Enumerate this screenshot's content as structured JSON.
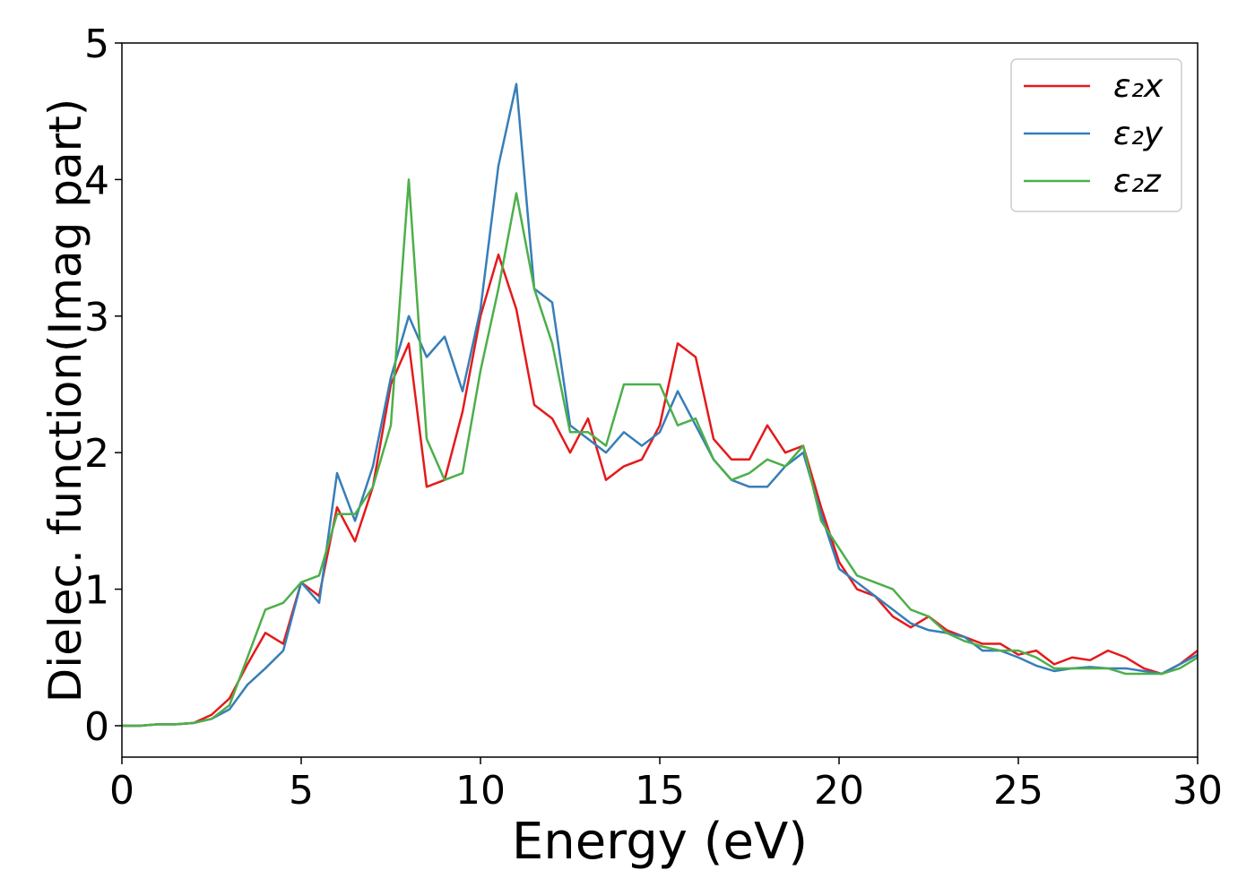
{
  "chart_data": {
    "type": "line",
    "xlabel": "Energy (eV)",
    "ylabel": "Dielec. function(Imag part)",
    "x": [
      0,
      0.5,
      1,
      1.5,
      2,
      2.5,
      3,
      3.5,
      4,
      4.5,
      5,
      5.5,
      6,
      6.5,
      7,
      7.5,
      8,
      8.5,
      9,
      9.5,
      10,
      10.5,
      11,
      11.5,
      12,
      12.5,
      13,
      13.5,
      14,
      14.5,
      15,
      15.5,
      16,
      16.5,
      17,
      17.5,
      18,
      18.5,
      19,
      19.5,
      20,
      20.5,
      21,
      21.5,
      22,
      22.5,
      23,
      23.5,
      24,
      24.5,
      25,
      25.5,
      26,
      26.5,
      27,
      27.5,
      28,
      28.5,
      29,
      29.5,
      30
    ],
    "series": [
      {
        "name": "ε₂x",
        "color": "#e41a1c",
        "values": [
          0,
          0,
          0.01,
          0.01,
          0.02,
          0.08,
          0.2,
          0.45,
          0.68,
          0.6,
          1.05,
          0.95,
          1.6,
          1.35,
          1.75,
          2.5,
          2.8,
          1.75,
          1.8,
          2.3,
          3.0,
          3.45,
          3.05,
          2.35,
          2.25,
          2.0,
          2.25,
          1.8,
          1.9,
          1.95,
          2.2,
          2.8,
          2.7,
          2.1,
          1.95,
          1.95,
          2.2,
          2.0,
          2.05,
          1.6,
          1.2,
          1.0,
          0.95,
          0.8,
          0.72,
          0.8,
          0.7,
          0.65,
          0.6,
          0.6,
          0.52,
          0.55,
          0.45,
          0.5,
          0.48,
          0.55,
          0.5,
          0.42,
          0.38,
          0.45,
          0.55
        ]
      },
      {
        "name": "ε₂y",
        "color": "#377eb8",
        "values": [
          0,
          0,
          0.01,
          0.01,
          0.02,
          0.05,
          0.12,
          0.3,
          0.42,
          0.55,
          1.05,
          0.9,
          1.85,
          1.5,
          1.9,
          2.55,
          3.0,
          2.7,
          2.85,
          2.45,
          3.05,
          4.1,
          4.7,
          3.2,
          3.1,
          2.2,
          2.1,
          2.0,
          2.15,
          2.05,
          2.15,
          2.45,
          2.2,
          1.95,
          1.8,
          1.75,
          1.75,
          1.9,
          2.0,
          1.55,
          1.15,
          1.05,
          0.95,
          0.85,
          0.75,
          0.7,
          0.68,
          0.65,
          0.55,
          0.55,
          0.5,
          0.44,
          0.4,
          0.42,
          0.43,
          0.42,
          0.42,
          0.4,
          0.38,
          0.45,
          0.52
        ]
      },
      {
        "name": "ε₂z",
        "color": "#4daf4a",
        "values": [
          0,
          0,
          0.01,
          0.01,
          0.02,
          0.05,
          0.15,
          0.5,
          0.85,
          0.9,
          1.05,
          1.1,
          1.55,
          1.55,
          1.75,
          2.2,
          4.0,
          2.1,
          1.8,
          1.85,
          2.6,
          3.2,
          3.9,
          3.2,
          2.8,
          2.15,
          2.15,
          2.05,
          2.5,
          2.5,
          2.5,
          2.2,
          2.25,
          1.95,
          1.8,
          1.85,
          1.95,
          1.9,
          2.05,
          1.5,
          1.3,
          1.1,
          1.05,
          1.0,
          0.85,
          0.8,
          0.68,
          0.62,
          0.58,
          0.55,
          0.55,
          0.5,
          0.42,
          0.42,
          0.42,
          0.42,
          0.38,
          0.38,
          0.38,
          0.42,
          0.5
        ]
      }
    ],
    "xlim": [
      0,
      30
    ],
    "ylim": [
      -0.23,
      5.0
    ],
    "xticks": [
      0,
      5,
      10,
      15,
      20,
      25,
      30
    ],
    "yticks": [
      0,
      1,
      2,
      3,
      4,
      5
    ],
    "legend": "upper right"
  }
}
